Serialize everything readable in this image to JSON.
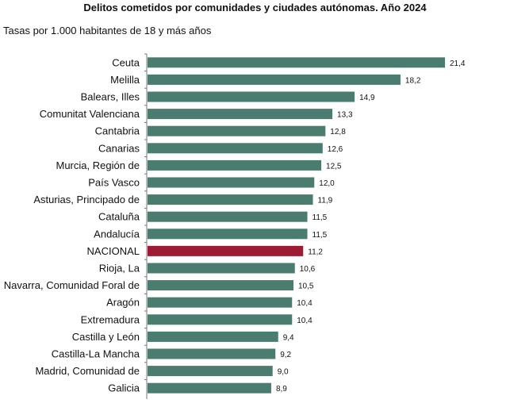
{
  "chart_data": {
    "type": "bar",
    "orientation": "horizontal",
    "title": "Delitos cometidos por comunidades y ciudades autónomas. Año 2024",
    "subtitle": "Tasas por 1.000 habitantes de 18 y más años",
    "categories": [
      "Ceuta",
      "Melilla",
      "Balears, Illes",
      "Comunitat Valenciana",
      "Cantabria",
      "Canarias",
      "Murcia, Región de",
      "País Vasco",
      "Asturias, Principado de",
      "Cataluña",
      "Andalucía",
      "NACIONAL",
      "Rioja, La",
      "Navarra, Comunidad Foral de",
      "Aragón",
      "Extremadura",
      "Castilla y León",
      "Castilla-La Mancha",
      "Madrid, Comunidad de",
      "Galicia"
    ],
    "values": [
      21.4,
      18.2,
      14.9,
      13.3,
      12.8,
      12.6,
      12.5,
      12.0,
      11.9,
      11.5,
      11.5,
      11.2,
      10.6,
      10.5,
      10.4,
      10.4,
      9.4,
      9.2,
      9.0,
      8.9
    ],
    "value_labels": [
      "21,4",
      "18,2",
      "14,9",
      "13,3",
      "12,8",
      "12,6",
      "12,5",
      "12,0",
      "11,9",
      "11,5",
      "11,5",
      "11,2",
      "10,6",
      "10,5",
      "10,4",
      "10,4",
      "9,4",
      "9,2",
      "9,0",
      "8,9"
    ],
    "highlight_category": "NACIONAL",
    "xlim": [
      0,
      21.4
    ],
    "grid": false,
    "colors": {
      "bar": "#4a7c6f",
      "highlight": "#9e1c33",
      "axis": "#777777"
    }
  }
}
